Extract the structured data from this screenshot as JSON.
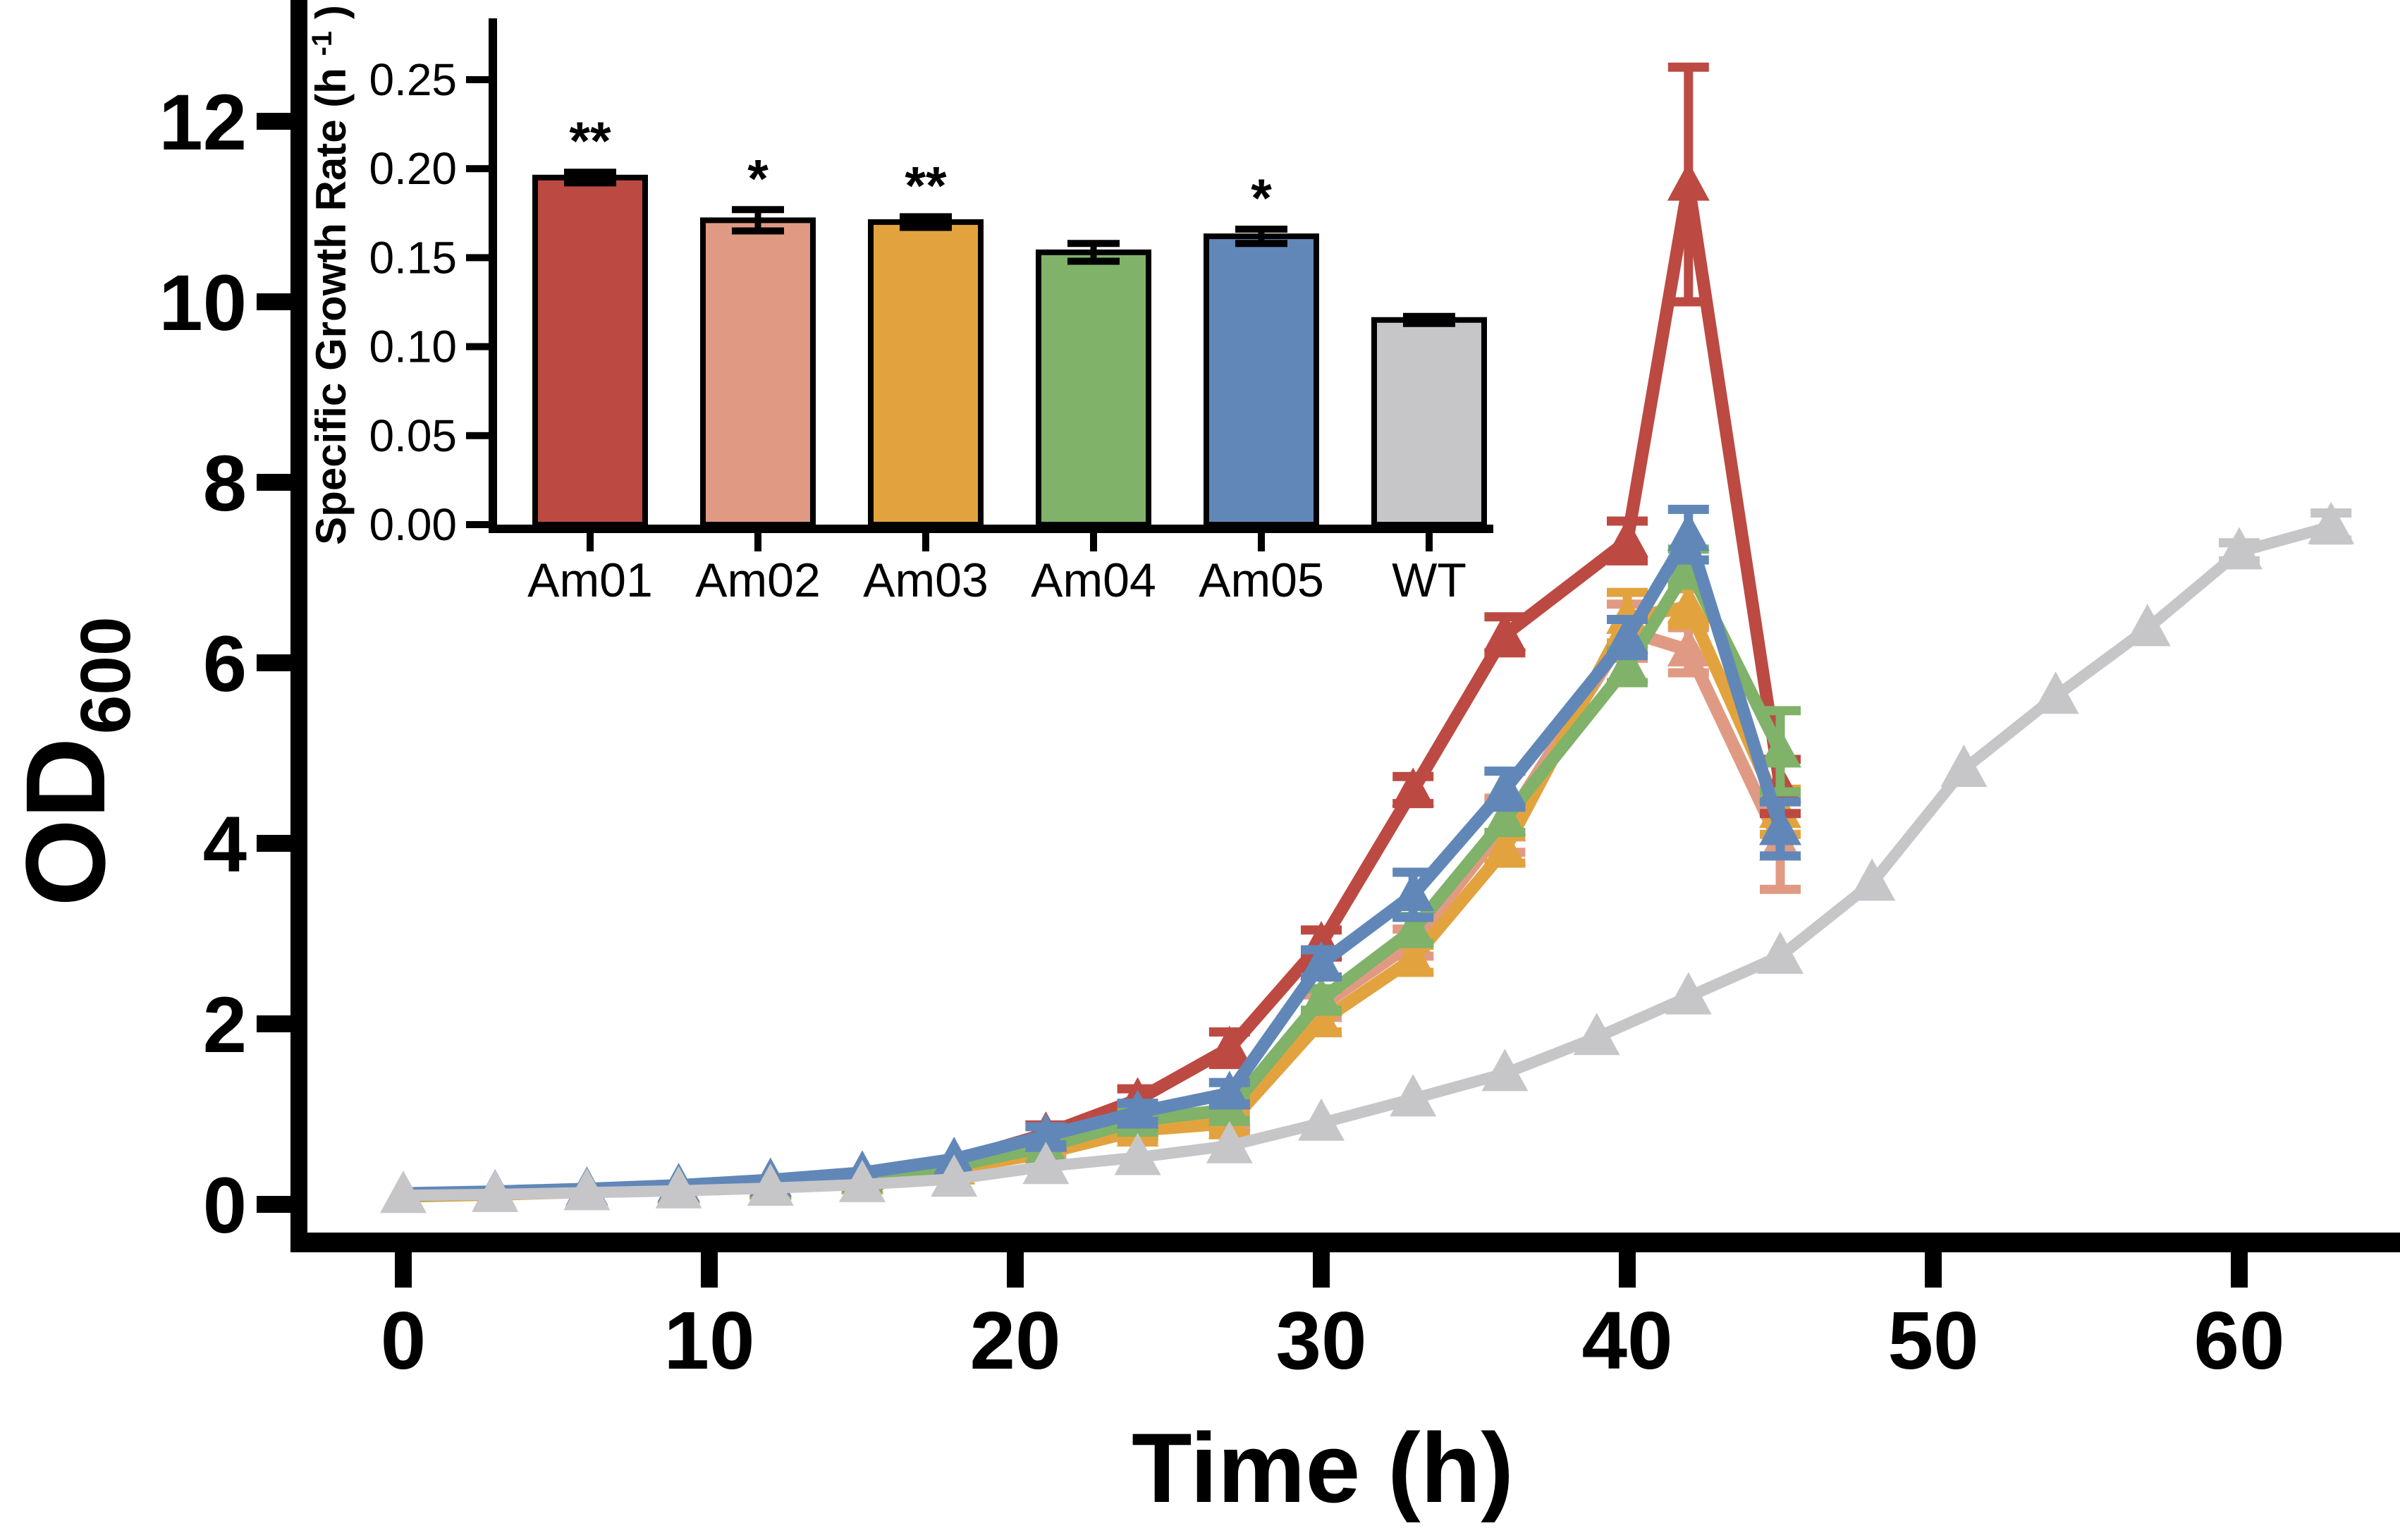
{
  "figure": {
    "background": "#ffffff",
    "axis_color": "#000000",
    "description": "Growth curves (OD600 vs time) of strains Am01-Am05 and WT, with inset bar chart of specific growth rates"
  },
  "chart_data": [
    {
      "type": "line",
      "title": "",
      "xlabel": "Time (h)",
      "ylabel_base": "OD",
      "ylabel_sub": "600",
      "xlim": [
        -3.5,
        65.3
      ],
      "ylim": [
        0,
        13.3
      ],
      "xticks": [
        0,
        10,
        20,
        30,
        40,
        50,
        60
      ],
      "yticks": [
        0,
        2,
        4,
        6,
        8,
        10,
        12
      ],
      "grid": false,
      "legend_position": "none",
      "marker": "triangle-up",
      "series": [
        {
          "name": "Am02",
          "color": "#e09a84",
          "x": [
            0,
            3,
            6,
            9,
            12,
            15,
            18,
            21,
            24,
            27,
            30,
            33,
            36,
            40,
            42,
            45
          ],
          "y": [
            0.1,
            0.12,
            0.15,
            0.19,
            0.24,
            0.31,
            0.43,
            0.62,
            0.9,
            1.0,
            2.2,
            2.9,
            4.2,
            6.35,
            6.14,
            3.99
          ],
          "err": [
            0,
            0,
            0,
            0,
            0,
            0,
            0,
            0.1,
            0.15,
            0.15,
            0.12,
            0.15,
            0.3,
            0.3,
            0.25,
            0.5
          ]
        },
        {
          "name": "Am03",
          "color": "#e2a33e",
          "x": [
            0,
            3,
            6,
            9,
            12,
            15,
            18,
            21,
            24,
            27,
            30,
            33,
            36,
            40,
            42,
            45
          ],
          "y": [
            0.09,
            0.11,
            0.14,
            0.18,
            0.23,
            0.29,
            0.4,
            0.57,
            0.82,
            0.9,
            2.03,
            2.72,
            3.93,
            6.5,
            6.62,
            4.35
          ],
          "err": [
            0,
            0,
            0,
            0,
            0,
            0,
            0,
            0,
            0.1,
            0.12,
            0.12,
            0.15,
            0.15,
            0.28,
            0.2,
            0.25
          ]
        },
        {
          "name": "Am01",
          "color": "#bc4a42",
          "x": [
            0,
            3,
            6,
            9,
            12,
            15,
            18,
            21,
            24,
            27,
            30,
            33,
            36,
            40,
            42,
            45
          ],
          "y": [
            0.11,
            0.13,
            0.16,
            0.2,
            0.26,
            0.34,
            0.48,
            0.78,
            1.16,
            1.73,
            2.89,
            4.59,
            6.31,
            7.35,
            11.3,
            4.63
          ],
          "err": [
            0,
            0,
            0,
            0,
            0,
            0,
            0,
            0.1,
            0.12,
            0.18,
            0.15,
            0.15,
            0.2,
            0.22,
            1.3,
            0.3
          ]
        },
        {
          "name": "Am04",
          "color": "#80b269",
          "x": [
            0,
            3,
            6,
            9,
            12,
            15,
            18,
            21,
            24,
            27,
            30,
            33,
            36,
            40,
            42,
            45
          ],
          "y": [
            0.1,
            0.12,
            0.15,
            0.19,
            0.24,
            0.31,
            0.43,
            0.64,
            0.93,
            1.05,
            2.27,
            3.04,
            4.27,
            5.96,
            7.06,
            5.02
          ],
          "err": [
            0,
            0,
            0,
            0,
            0,
            0,
            0,
            0,
            0.1,
            0.12,
            0.12,
            0.15,
            0.15,
            0.18,
            0.2,
            0.45
          ]
        },
        {
          "name": "Am05",
          "color": "#6187b8",
          "x": [
            0,
            3,
            6,
            9,
            12,
            15,
            18,
            21,
            24,
            27,
            30,
            33,
            36,
            40,
            42,
            45
          ],
          "y": [
            0.12,
            0.14,
            0.17,
            0.21,
            0.27,
            0.35,
            0.5,
            0.76,
            1.02,
            1.23,
            2.67,
            3.43,
            4.6,
            6.28,
            7.42,
            4.16
          ],
          "err": [
            0,
            0,
            0,
            0,
            0,
            0,
            0,
            0.1,
            0.1,
            0.12,
            0.15,
            0.25,
            0.2,
            0.2,
            0.28,
            0.3
          ]
        },
        {
          "name": "WT",
          "color": "#c6c6c8",
          "x": [
            0,
            3,
            6,
            9,
            12,
            15,
            18,
            21,
            24,
            27,
            30,
            33,
            36,
            39,
            42,
            45,
            48,
            51,
            54,
            57,
            60,
            63
          ],
          "y": [
            0.1,
            0.11,
            0.13,
            0.15,
            0.18,
            0.22,
            0.28,
            0.42,
            0.52,
            0.65,
            0.9,
            1.17,
            1.45,
            1.85,
            2.3,
            2.75,
            3.56,
            4.82,
            5.63,
            6.38,
            7.23,
            7.51
          ],
          "err": [
            0,
            0,
            0,
            0,
            0,
            0,
            0,
            0,
            0,
            0,
            0,
            0,
            0,
            0,
            0,
            0,
            0,
            0,
            0,
            0,
            0.1,
            0.15
          ]
        }
      ]
    },
    {
      "type": "bar",
      "role": "inset",
      "ylabel_base": "Specific Growth Rate (h",
      "ylabel_sup": "-1",
      "ylabel_close": ")",
      "categories": [
        "Am01",
        "Am02",
        "Am03",
        "Am04",
        "Am05",
        "WT"
      ],
      "values": [
        0.195,
        0.171,
        0.17,
        0.153,
        0.162,
        0.115
      ],
      "errors": [
        0.003,
        0.006,
        0.003,
        0.005,
        0.004,
        0.002
      ],
      "significance": [
        "**",
        "*",
        "**",
        "",
        "*",
        ""
      ],
      "bar_colors": [
        "#bc4a42",
        "#e09a84",
        "#e2a33e",
        "#80b269",
        "#6187b8",
        "#c6c6c8"
      ],
      "bar_edge_color": "#000000",
      "yticks": [
        0,
        0.05,
        0.1,
        0.15,
        0.2,
        0.25
      ],
      "ylim": [
        0,
        0.283
      ],
      "grid": false
    }
  ]
}
